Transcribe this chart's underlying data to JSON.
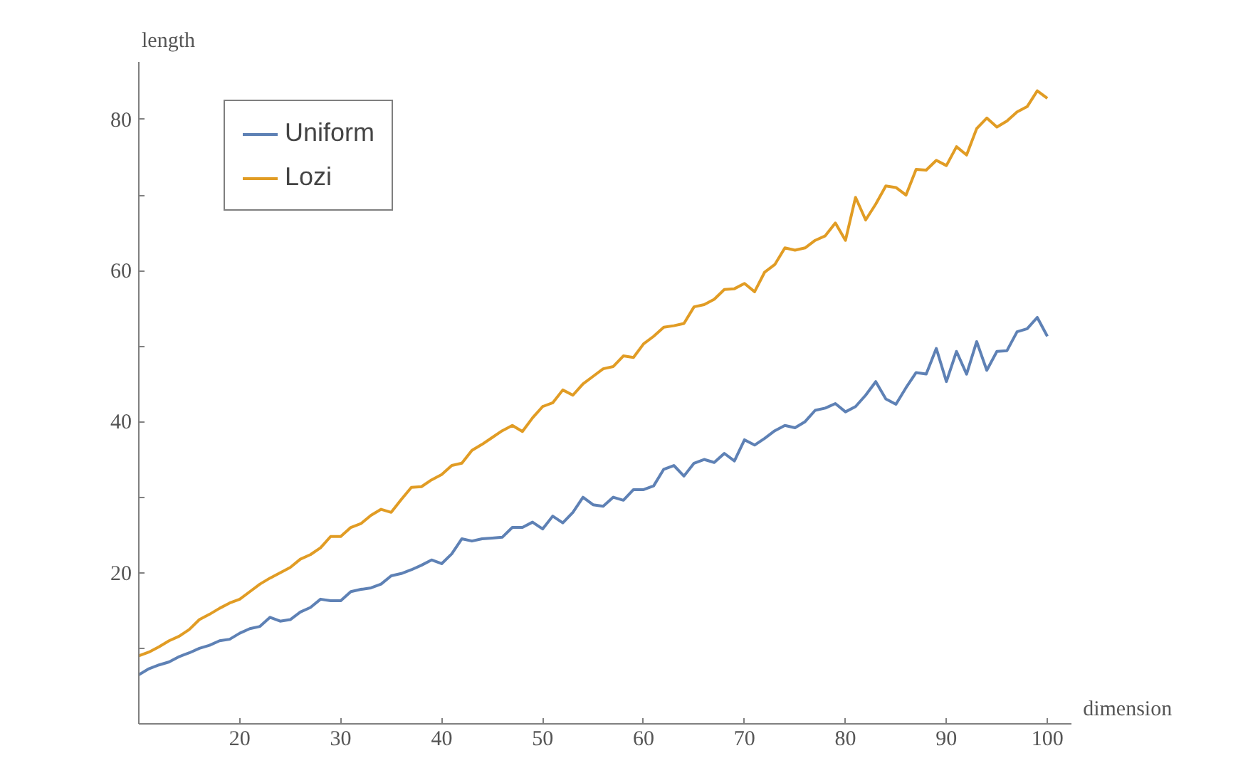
{
  "chart_data": {
    "type": "line",
    "xlabel": "dimension",
    "ylabel": "length",
    "x": [
      10,
      11,
      12,
      13,
      14,
      15,
      16,
      17,
      18,
      19,
      20,
      21,
      22,
      23,
      24,
      25,
      26,
      27,
      28,
      29,
      30,
      31,
      32,
      33,
      34,
      35,
      36,
      37,
      38,
      39,
      40,
      41,
      42,
      43,
      44,
      45,
      46,
      47,
      48,
      49,
      50,
      51,
      52,
      53,
      54,
      55,
      56,
      57,
      58,
      59,
      60,
      61,
      62,
      63,
      64,
      65,
      66,
      67,
      68,
      69,
      70,
      71,
      72,
      73,
      74,
      75,
      76,
      77,
      78,
      79,
      80,
      81,
      82,
      83,
      84,
      85,
      86,
      87,
      88,
      89,
      90,
      91,
      92,
      93,
      94,
      95,
      96,
      97,
      98,
      99,
      100
    ],
    "series": [
      {
        "name": "Uniform",
        "color": "#5e81b5",
        "values": [
          6.5,
          7.3,
          7.8,
          8.2,
          8.9,
          9.4,
          10.0,
          10.4,
          11.0,
          11.2,
          12.0,
          12.6,
          12.9,
          14.1,
          13.6,
          13.8,
          14.8,
          15.4,
          16.5,
          16.3,
          16.3,
          17.5,
          17.8,
          18.0,
          18.5,
          19.6,
          19.9,
          20.4,
          21.0,
          21.7,
          21.2,
          22.5,
          24.5,
          24.2,
          24.5,
          24.6,
          24.7,
          26.0,
          26.0,
          26.7,
          25.8,
          27.5,
          26.6,
          28.0,
          30.0,
          29.0,
          28.8,
          30.0,
          29.6,
          31.0,
          31.0,
          31.5,
          33.7,
          34.2,
          32.8,
          34.5,
          35.0,
          34.6,
          35.8,
          34.8,
          37.6,
          36.9,
          37.8,
          38.8,
          39.5,
          39.2,
          40.0,
          41.5,
          41.8,
          42.4,
          41.3,
          42.0,
          43.5,
          45.3,
          43.0,
          42.3,
          44.5,
          46.5,
          46.3,
          49.7,
          45.3,
          49.3,
          46.3,
          50.6,
          46.8,
          49.3,
          49.4,
          51.9,
          52.3,
          53.8,
          51.3
        ]
      },
      {
        "name": "Lozi",
        "color": "#e19c24",
        "values": [
          9.0,
          9.5,
          10.2,
          11.0,
          11.6,
          12.5,
          13.8,
          14.5,
          15.3,
          16.0,
          16.5,
          17.5,
          18.5,
          19.3,
          20.0,
          20.7,
          21.8,
          22.4,
          23.3,
          24.8,
          24.8,
          26.0,
          26.5,
          27.6,
          28.4,
          28.0,
          29.7,
          31.3,
          31.4,
          32.3,
          33.0,
          34.2,
          34.5,
          36.2,
          37.0,
          37.9,
          38.8,
          39.5,
          38.7,
          40.5,
          42.0,
          42.5,
          44.2,
          43.5,
          45.0,
          46.0,
          47.0,
          47.3,
          48.7,
          48.5,
          50.3,
          51.3,
          52.5,
          52.7,
          53.0,
          55.2,
          55.5,
          56.2,
          57.5,
          57.6,
          58.3,
          57.2,
          59.8,
          60.8,
          63.0,
          62.7,
          63.0,
          64.0,
          64.6,
          66.3,
          64.0,
          69.7,
          66.7,
          68.8,
          71.2,
          71.0,
          70.0,
          73.4,
          73.3,
          74.6,
          73.9,
          76.4,
          75.3,
          78.8,
          80.2,
          79.0,
          79.8,
          81.0,
          81.7,
          83.8,
          82.8
        ]
      }
    ],
    "xlim": [
      10,
      102.4
    ],
    "ylim": [
      0,
      87.7
    ],
    "xticks": [
      20,
      30,
      40,
      50,
      60,
      70,
      80,
      90,
      100
    ],
    "yticks": [
      {
        "value": 10,
        "label": null
      },
      20,
      {
        "value": 30,
        "label": null
      },
      40,
      {
        "value": 50,
        "label": null
      },
      60,
      {
        "value": 70,
        "label": null
      },
      80
    ],
    "grid": false,
    "legend": "top left",
    "marker": "none",
    "line_style": "solid"
  }
}
